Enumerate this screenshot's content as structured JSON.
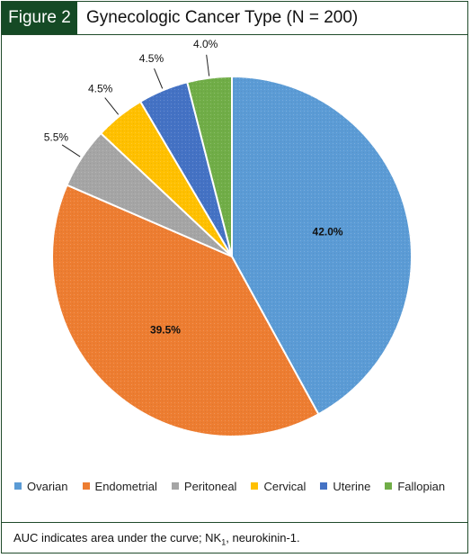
{
  "header": {
    "figure_label": "Figure 2",
    "title": "Gynecologic Cancer Type (N = 200)"
  },
  "footer": {
    "note_prefix": "AUC indicates area under the curve; NK",
    "note_sub": "1",
    "note_suffix": ", neurokinin-1."
  },
  "chart_data": {
    "type": "pie",
    "title": "Gynecologic Cancer Type (N = 200)",
    "legend_position": "bottom",
    "slices": [
      {
        "name": "Ovarian",
        "value": 42.0,
        "label": "42.0%",
        "color": "#5b9bd5",
        "label_inside": true
      },
      {
        "name": "Endometrial",
        "value": 39.5,
        "label": "39.5%",
        "color": "#ed7d31",
        "label_inside": true
      },
      {
        "name": "Peritoneal",
        "value": 5.5,
        "label": "5.5%",
        "color": "#a5a5a5",
        "label_inside": false
      },
      {
        "name": "Cervical",
        "value": 4.5,
        "label": "4.5%",
        "color": "#ffc000",
        "label_inside": false
      },
      {
        "name": "Uterine",
        "value": 4.5,
        "label": "4.5%",
        "color": "#4472c4",
        "label_inside": false
      },
      {
        "name": "Fallopian",
        "value": 4.0,
        "label": "4.0%",
        "color": "#70ad47",
        "label_inside": false
      }
    ]
  }
}
